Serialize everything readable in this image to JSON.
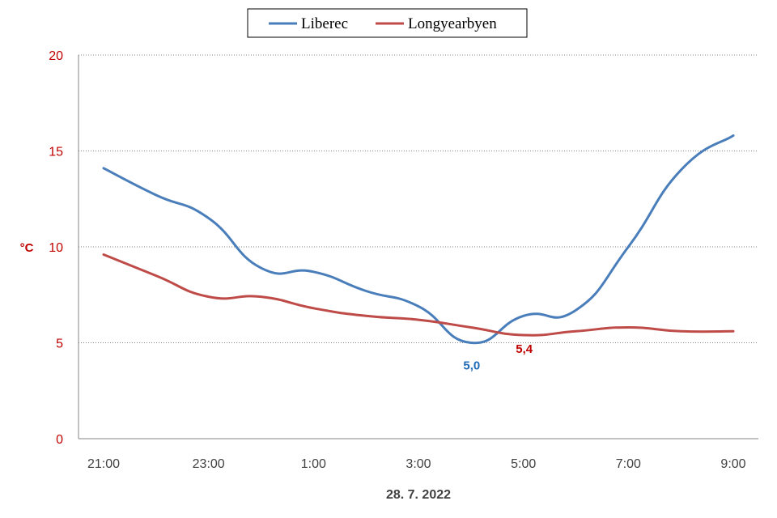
{
  "chart_data": {
    "type": "line",
    "xlabel": "28. 7. 2022",
    "ylabel": "°C",
    "ylim": [
      0,
      20
    ],
    "y_ticks": [
      0,
      5,
      10,
      15,
      20
    ],
    "x_tick_labels": [
      "21:00",
      "23:00",
      "1:00",
      "3:00",
      "5:00",
      "7:00",
      "9:00"
    ],
    "categories": [
      "21:00",
      "22:00",
      "23:00",
      "0:00",
      "1:00",
      "2:00",
      "3:00",
      "4:00",
      "5:00",
      "6:00",
      "7:00",
      "8:00",
      "9:00"
    ],
    "grid": "horizontal dotted",
    "legend_position": "top-center",
    "series": [
      {
        "name": "Liberec",
        "color": "#4a7ebb",
        "values": [
          14.1,
          12.7,
          11.5,
          8.9,
          8.7,
          7.7,
          6.9,
          5.0,
          6.4,
          6.7,
          10.0,
          14.0,
          15.8
        ]
      },
      {
        "name": "Longyearbyen",
        "color": "#be4b48",
        "values": [
          9.6,
          8.5,
          7.4,
          7.4,
          6.8,
          6.4,
          6.2,
          5.8,
          5.4,
          5.6,
          5.8,
          5.6,
          5.6
        ]
      }
    ],
    "annotations": [
      {
        "series": "Liberec",
        "x": "4:00",
        "value": 5.0,
        "text": "5,0",
        "color": "#1f6bb5"
      },
      {
        "series": "Longyearbyen",
        "x": "5:00",
        "value": 5.4,
        "text": "5,4",
        "color": "#c00000"
      }
    ]
  }
}
